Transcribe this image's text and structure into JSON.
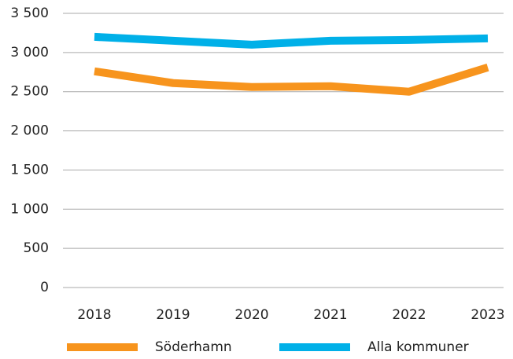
{
  "chart_data": {
    "type": "line",
    "categories": [
      "2018",
      "2019",
      "2020",
      "2021",
      "2022",
      "2023"
    ],
    "series": [
      {
        "name": "Söderhamn",
        "color": "#f7941d",
        "values": [
          2760,
          2610,
          2560,
          2570,
          2500,
          2810
        ]
      },
      {
        "name": "Alla kommuner",
        "color": "#00b0e8",
        "values": [
          3200,
          3150,
          3100,
          3150,
          3160,
          3180
        ]
      }
    ],
    "ylim": [
      0,
      3500
    ],
    "yticks": [
      0,
      500,
      {
        "value": 1000,
        "label": "1 000"
      },
      {
        "value": 1500,
        "label": "1 500"
      },
      {
        "value": 2000,
        "label": "2 000"
      },
      {
        "value": 2500,
        "label": "2 500"
      },
      {
        "value": 3000,
        "label": "3 000"
      },
      {
        "value": 3500,
        "label": "3 500"
      }
    ],
    "grid": true
  }
}
